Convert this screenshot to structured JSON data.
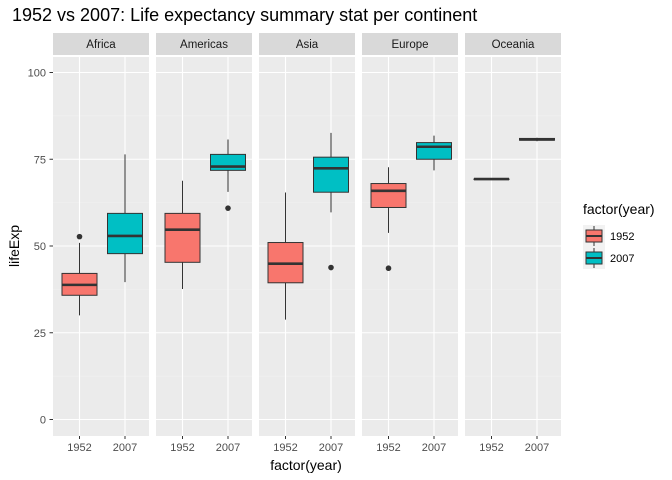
{
  "chart_data": {
    "type": "boxplot",
    "title": "1952 vs 2007: Life expectancy summary stat per continent",
    "xlabel": "factor(year)",
    "ylabel": "lifeExp",
    "ylim": [
      -3,
      104
    ],
    "yticks": [
      0,
      25,
      50,
      75,
      100
    ],
    "grid": true,
    "legend": {
      "title": "factor(year)",
      "position": "right",
      "entries": [
        {
          "label": "1952",
          "color": "#F8766D"
        },
        {
          "label": "2007",
          "color": "#00BFC4"
        }
      ]
    },
    "categories": [
      "1952",
      "2007"
    ],
    "facets": [
      {
        "name": "Africa",
        "boxes": [
          {
            "year": "1952",
            "min": 30.0,
            "q1": 35.8,
            "median": 38.8,
            "q3": 42.1,
            "max": 50.9,
            "outliers": [
              52.7
            ]
          },
          {
            "year": "2007",
            "min": 39.6,
            "q1": 47.8,
            "median": 52.9,
            "q3": 59.4,
            "max": 76.4,
            "outliers": []
          }
        ]
      },
      {
        "name": "Americas",
        "boxes": [
          {
            "year": "1952",
            "min": 37.6,
            "q1": 45.3,
            "median": 54.7,
            "q3": 59.4,
            "max": 68.8,
            "outliers": []
          },
          {
            "year": "2007",
            "min": 65.6,
            "q1": 71.8,
            "median": 72.9,
            "q3": 76.4,
            "max": 80.7,
            "outliers": [
              60.9
            ]
          }
        ]
      },
      {
        "name": "Asia",
        "boxes": [
          {
            "year": "1952",
            "min": 28.8,
            "q1": 39.4,
            "median": 44.9,
            "q3": 51.0,
            "max": 65.4,
            "outliers": []
          },
          {
            "year": "2007",
            "min": 59.7,
            "q1": 65.5,
            "median": 72.4,
            "q3": 75.6,
            "max": 82.6,
            "outliers": [
              43.8
            ]
          }
        ]
      },
      {
        "name": "Europe",
        "boxes": [
          {
            "year": "1952",
            "min": 53.8,
            "q1": 61.1,
            "median": 65.9,
            "q3": 68.0,
            "max": 72.7,
            "outliers": [
              43.6
            ]
          },
          {
            "year": "2007",
            "min": 71.8,
            "q1": 75.0,
            "median": 78.6,
            "q3": 79.8,
            "max": 81.8,
            "outliers": []
          }
        ]
      },
      {
        "name": "Oceania",
        "boxes": [
          {
            "year": "1952",
            "min": 69.1,
            "q1": 69.2,
            "median": 69.3,
            "q3": 69.3,
            "max": 69.4,
            "outliers": []
          },
          {
            "year": "2007",
            "min": 80.2,
            "q1": 80.5,
            "median": 80.7,
            "q3": 81.0,
            "max": 81.2,
            "outliers": []
          }
        ]
      }
    ]
  },
  "colors": {
    "panel_bg": "#EBEBEB",
    "strip_bg": "#D9D9D9",
    "grid_major": "#FFFFFF",
    "grid_minor": "#F2F2F2",
    "outline": "#333333",
    "tick_text": "#4D4D4D"
  }
}
